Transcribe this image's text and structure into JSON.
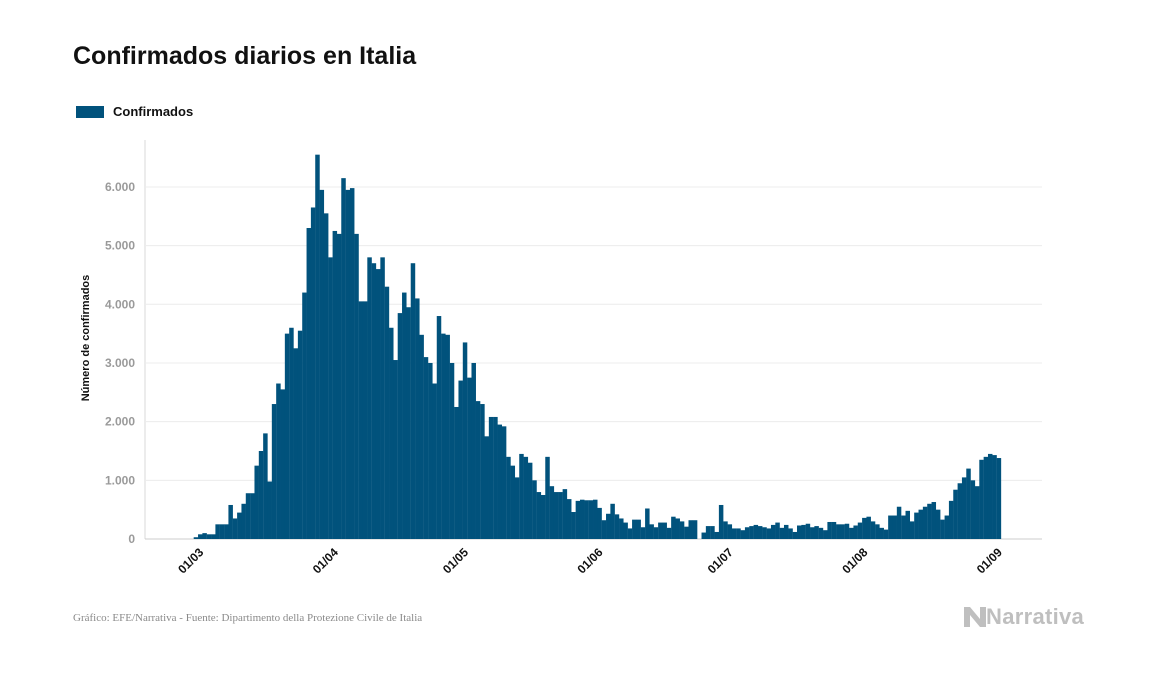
{
  "title": "Confirmados diarios en Italia",
  "legend": {
    "label": "Confirmados"
  },
  "footer": {
    "source": "Gráfico: EFE/Narrativa - Fuente: Dipartimento della Protezione Civile de Italia"
  },
  "brand": {
    "name": "Narrativa"
  },
  "chart_data": {
    "type": "bar",
    "ylabel": "Número de confirmados",
    "xlabel": "",
    "ylim": [
      0,
      6800
    ],
    "yticks": [
      0,
      1000,
      2000,
      3000,
      4000,
      5000,
      6000
    ],
    "ytick_labels": [
      "0",
      "1.000",
      "2.000",
      "3.000",
      "4.000",
      "5.000",
      "6.000"
    ],
    "xtick_labels": [
      "01/03",
      "01/04",
      "01/05",
      "01/06",
      "01/07",
      "01/08",
      "01/09"
    ],
    "xtick_dates": [
      "2020-03-01",
      "2020-04-01",
      "2020-05-01",
      "2020-06-01",
      "2020-07-01",
      "2020-08-01",
      "2020-09-01"
    ],
    "grid": true,
    "color": "#01527c",
    "first_date": "2020-02-24",
    "last_date": "2020-08-31",
    "values": [
      0,
      0,
      0,
      0,
      0,
      30,
      80,
      100,
      80,
      80,
      250,
      250,
      250,
      580,
      350,
      450,
      600,
      780,
      780,
      1250,
      1500,
      1800,
      980,
      2300,
      2650,
      2550,
      3500,
      3600,
      3250,
      3550,
      4200,
      5300,
      5650,
      6550,
      5950,
      5550,
      4800,
      5250,
      5200,
      6150,
      5950,
      5980,
      5200,
      4050,
      4050,
      4800,
      4700,
      4600,
      4800,
      4300,
      3600,
      3050,
      3850,
      4200,
      3950,
      4700,
      4100,
      3480,
      3100,
      3000,
      2650,
      3800,
      3500,
      3480,
      3000,
      2250,
      2700,
      3350,
      2750,
      3000,
      2350,
      2300,
      1750,
      2080,
      2080,
      1950,
      1920,
      1400,
      1250,
      1050,
      1450,
      1400,
      1300,
      1000,
      800,
      750,
      1400,
      900,
      800,
      800,
      850,
      680,
      460,
      650,
      670,
      660,
      660,
      670,
      530,
      320,
      430,
      600,
      420,
      350,
      280,
      180,
      330,
      330,
      200,
      520,
      250,
      200,
      280,
      280,
      190,
      380,
      350,
      300,
      210,
      320,
      320,
      0,
      110,
      220,
      220,
      120,
      580,
      300,
      250,
      180,
      180,
      150,
      200,
      220,
      240,
      220,
      200,
      180,
      240,
      280,
      190,
      240,
      180,
      120,
      230,
      240,
      260,
      200,
      220,
      190,
      150,
      290,
      290,
      250,
      250,
      260,
      190,
      230,
      280,
      360,
      380,
      300,
      250,
      190,
      160,
      400,
      400,
      550,
      400,
      480,
      300,
      450,
      500,
      550,
      600,
      630,
      500,
      330,
      400,
      650,
      840,
      950,
      1050,
      1200,
      1000,
      900,
      1350,
      1400,
      1450,
      1430,
      1380
    ]
  }
}
